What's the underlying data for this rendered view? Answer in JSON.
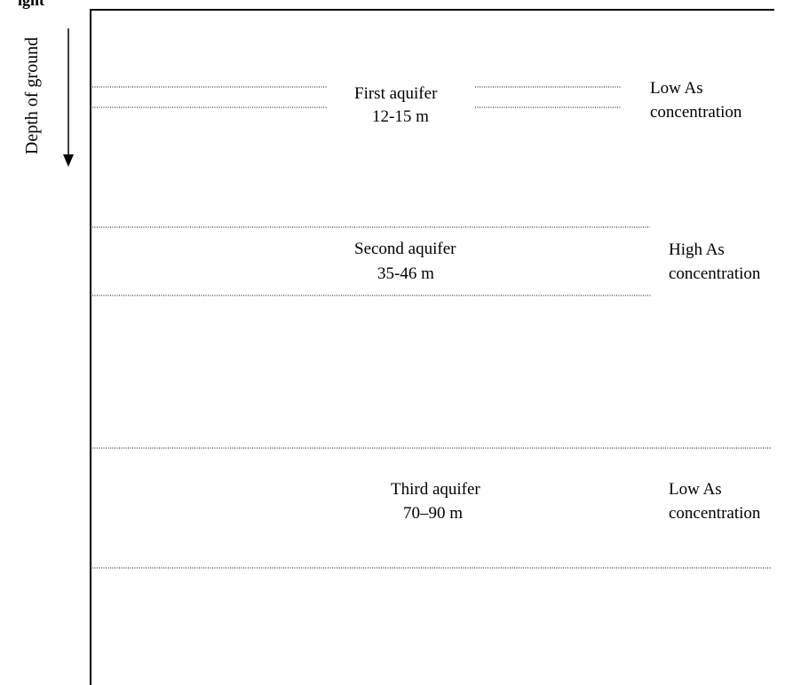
{
  "header": {
    "cut_off_title": "ight"
  },
  "axis": {
    "label": "Depth of ground"
  },
  "aquifers": [
    {
      "name": "First aquifer",
      "depth": "12-15 m",
      "concentration_line1": "Low As",
      "concentration_line2": "concentration"
    },
    {
      "name": "Second aquifer",
      "depth": "35-46 m",
      "concentration_line1": "High As",
      "concentration_line2": "concentration"
    },
    {
      "name": "Third aquifer",
      "depth": "70–90 m",
      "concentration_line1": "Low As",
      "concentration_line2": "concentration"
    }
  ]
}
